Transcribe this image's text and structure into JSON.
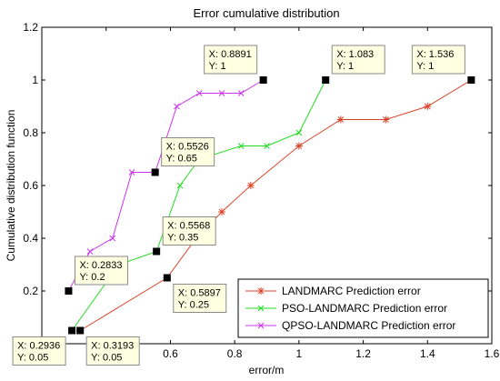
{
  "chart_data": {
    "type": "line",
    "title": "Error cumulative distribution",
    "xlabel": "error/m",
    "ylabel": "Cumulative distribution function",
    "xlim": [
      0.2,
      1.6
    ],
    "ylim": [
      0,
      1.2
    ],
    "xticks": [
      "0.2",
      "0.4",
      "0.6",
      "0.8",
      "1",
      "1.2",
      "1.4",
      "1.6"
    ],
    "yticks": [
      "0",
      "0.2",
      "0.4",
      "0.6",
      "0.8",
      "1",
      "1.2"
    ],
    "grid": false,
    "legend_position": "bottom-right",
    "series": [
      {
        "name": "LANDMARC Prediction error",
        "color": "#d9442b",
        "marker": "asterisk",
        "x": [
          0.3193,
          0.5897,
          0.68,
          0.76,
          0.85,
          1.0,
          1.13,
          1.27,
          1.4,
          1.536
        ],
        "y": [
          0.05,
          0.25,
          0.4,
          0.5,
          0.6,
          0.75,
          0.85,
          0.85,
          0.9,
          1.0
        ]
      },
      {
        "name": "PSO-LANDMARC Prediction error",
        "color": "#22dd22",
        "marker": "x",
        "x": [
          0.2936,
          0.44,
          0.5568,
          0.63,
          0.69,
          0.82,
          0.9,
          1.0,
          1.083
        ],
        "y": [
          0.05,
          0.3,
          0.35,
          0.6,
          0.7,
          0.75,
          0.75,
          0.8,
          1.0
        ]
      },
      {
        "name": "QPSO-LANDMARC Prediction error",
        "color": "#cc33ee",
        "marker": "x",
        "x": [
          0.2833,
          0.35,
          0.42,
          0.48,
          0.5526,
          0.62,
          0.69,
          0.76,
          0.82,
          0.8891
        ],
        "y": [
          0.2,
          0.35,
          0.4,
          0.65,
          0.65,
          0.9,
          0.95,
          0.95,
          0.95,
          1.0
        ]
      }
    ],
    "datatips": [
      {
        "x": 0.2936,
        "y": 0.05,
        "xtext": "X: 0.2936",
        "ytext": "Y: 0.05",
        "side": "bl"
      },
      {
        "x": 0.3193,
        "y": 0.05,
        "xtext": "X: 0.3193",
        "ytext": "Y: 0.05",
        "side": "br"
      },
      {
        "x": 0.2833,
        "y": 0.2,
        "xtext": "X: 0.2833",
        "ytext": "Y: 0.2",
        "side": "tr"
      },
      {
        "x": 0.5897,
        "y": 0.25,
        "xtext": "X: 0.5897",
        "ytext": "Y: 0.25",
        "side": "br"
      },
      {
        "x": 0.5568,
        "y": 0.35,
        "xtext": "X: 0.5568",
        "ytext": "Y: 0.35",
        "side": "tr"
      },
      {
        "x": 0.5526,
        "y": 0.65,
        "xtext": "X: 0.5526",
        "ytext": "Y: 0.65",
        "side": "tr"
      },
      {
        "x": 0.8891,
        "y": 1.0,
        "xtext": "X: 0.8891",
        "ytext": "Y: 1",
        "side": "tl"
      },
      {
        "x": 1.083,
        "y": 1.0,
        "xtext": "X: 1.083",
        "ytext": "Y: 1",
        "side": "tr"
      },
      {
        "x": 1.536,
        "y": 1.0,
        "xtext": "X: 1.536",
        "ytext": "Y: 1",
        "side": "tl"
      }
    ]
  }
}
